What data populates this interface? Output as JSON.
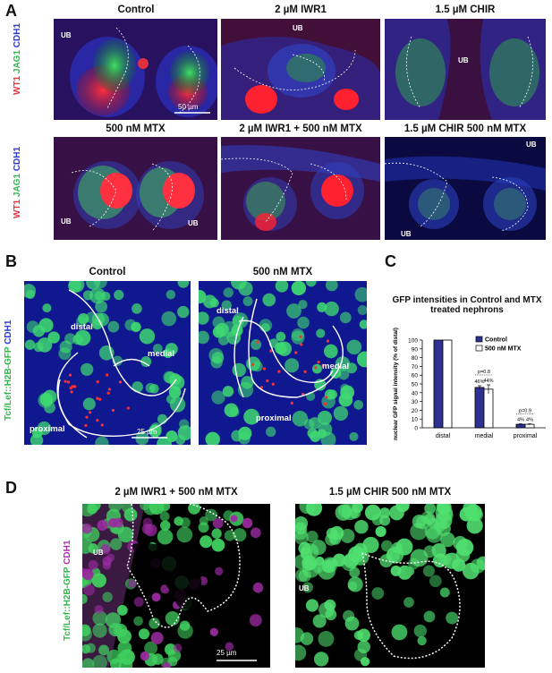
{
  "panels": {
    "A": {
      "letter": "A",
      "row1_titles": [
        "Control",
        "2 µM IWR1",
        "1.5 µM CHIR"
      ],
      "row2_titles": [
        "500 nM MTX",
        "2 µM IWR1 + 500 nM MTX",
        "1.5 µM CHIR 500 nM MTX"
      ],
      "stain_labels": {
        "wt1": "WT1",
        "jag1": "JAG1",
        "cdh1": "CDH1"
      },
      "ub": "UB",
      "scale": "50 µm"
    },
    "B": {
      "letter": "B",
      "titles": [
        "Control",
        "500 nM MTX"
      ],
      "stain_labels": {
        "reporter": "Tcf/Lef::H2B-GFP",
        "cdh1": "CDH1"
      },
      "regions": {
        "distal": "distal",
        "medial": "medial",
        "proximal": "proximal"
      },
      "scale": "25 µm"
    },
    "C": {
      "letter": "C"
    },
    "D": {
      "letter": "D",
      "titles": [
        "2 µM IWR1 + 500 nM MTX",
        "1.5 µM CHIR 500 nM MTX"
      ],
      "stain_labels": {
        "reporter": "Tcf/Lef::H2B-GFP",
        "cdh1": "CDH1"
      },
      "ub": "UB",
      "scale": "25 µm"
    }
  },
  "colors": {
    "wt1": "#e8303a",
    "jag1": "#2fb84a",
    "cdh1": "#2a3ad8",
    "gfp": "#2fb84a",
    "cdh1_magenta": "#b02cb0",
    "control_bar": "#2e3192",
    "mtx_bar": "#ffffff"
  },
  "chart_data": {
    "type": "bar",
    "title": "GFP intensities in Control and MTX treated nephrons",
    "categories": [
      "distal",
      "medial",
      "proximal"
    ],
    "series": [
      {
        "name": "Control",
        "values": [
          100,
          46,
          4
        ],
        "errors": [
          0,
          2,
          0.5
        ]
      },
      {
        "name": "500 nM MTX",
        "values": [
          100,
          44,
          4
        ],
        "errors": [
          0,
          5,
          0.5
        ]
      }
    ],
    "data_labels": [
      [
        "",
        "46%",
        "4%"
      ],
      [
        "",
        "44%",
        "4%"
      ]
    ],
    "pvalues": [
      "",
      "p=0.8",
      "p=0.9"
    ],
    "ylabel": "nuclear GFP signal intensity (% of distal)",
    "ylim": [
      0,
      100
    ],
    "yticks": [
      0,
      10,
      20,
      30,
      40,
      50,
      60,
      70,
      80,
      90,
      100
    ],
    "legend_placement": "top-right"
  }
}
